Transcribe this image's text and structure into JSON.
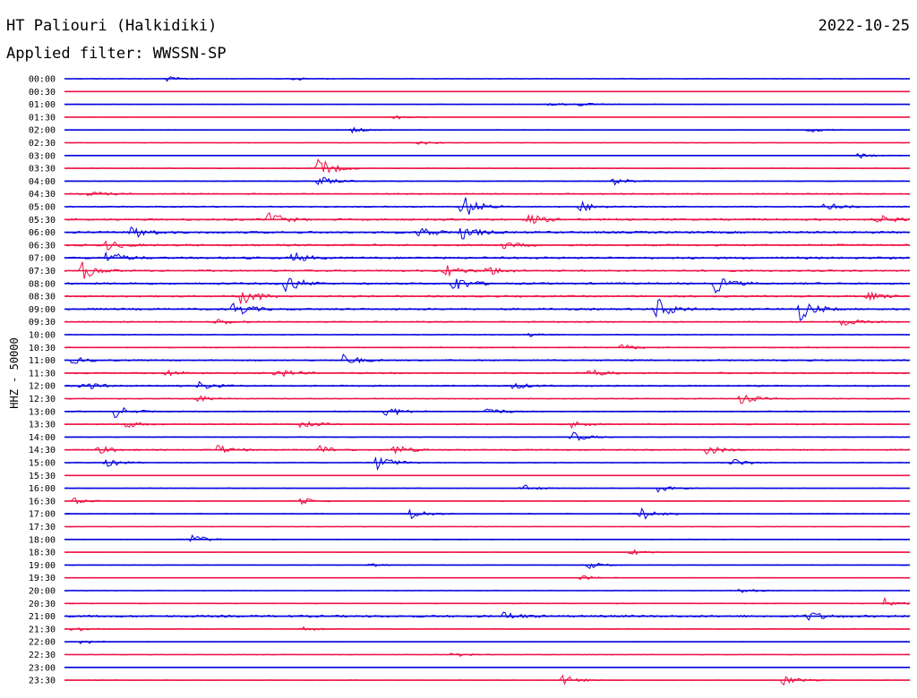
{
  "header": {
    "station": "HT Paliouri (Halkidiki)",
    "date": "2022-10-25",
    "filter": "Applied filter: WWSSN-SP",
    "channel": "HHZ - 50000"
  },
  "colors": {
    "blue": "#0000dd",
    "red": "#ee1144"
  },
  "chart_data": {
    "type": "line",
    "title": "HT Paliouri (Halkidiki)",
    "ylabel": "HHZ - 50000",
    "rows": [
      {
        "time": "00:00",
        "color": "blue",
        "level": 0.15,
        "events": [
          [
            0.12,
            0.3
          ],
          [
            0.27,
            0.25
          ]
        ]
      },
      {
        "time": "00:30",
        "color": "red",
        "level": 0.12,
        "events": []
      },
      {
        "time": "01:00",
        "color": "blue",
        "level": 0.12,
        "events": [
          [
            0.57,
            0.3
          ],
          [
            0.61,
            0.2
          ]
        ]
      },
      {
        "time": "01:30",
        "color": "red",
        "level": 0.1,
        "events": [
          [
            0.39,
            0.25
          ]
        ]
      },
      {
        "time": "02:00",
        "color": "blue",
        "level": 0.15,
        "events": [
          [
            0.34,
            0.3
          ],
          [
            0.88,
            0.3
          ]
        ]
      },
      {
        "time": "02:30",
        "color": "red",
        "level": 0.12,
        "events": [
          [
            0.42,
            0.25
          ]
        ]
      },
      {
        "time": "03:00",
        "color": "blue",
        "level": 0.12,
        "events": [
          [
            0.94,
            0.35
          ]
        ]
      },
      {
        "time": "03:30",
        "color": "red",
        "level": 0.2,
        "events": [
          [
            0.3,
            1.3
          ]
        ]
      },
      {
        "time": "04:00",
        "color": "blue",
        "level": 0.2,
        "events": [
          [
            0.3,
            0.6
          ],
          [
            0.65,
            0.4
          ]
        ]
      },
      {
        "time": "04:30",
        "color": "red",
        "level": 0.3,
        "events": [
          [
            0.03,
            0.35
          ]
        ]
      },
      {
        "time": "05:00",
        "color": "blue",
        "level": 0.3,
        "events": [
          [
            0.47,
            1.6
          ],
          [
            0.61,
            0.6
          ],
          [
            0.9,
            0.5
          ]
        ]
      },
      {
        "time": "05:30",
        "color": "red",
        "level": 0.45,
        "events": [
          [
            0.24,
            1.0
          ],
          [
            0.55,
            0.6
          ],
          [
            0.96,
            0.6
          ]
        ]
      },
      {
        "time": "06:00",
        "color": "blue",
        "level": 0.5,
        "events": [
          [
            0.08,
            0.8
          ],
          [
            0.42,
            0.8
          ],
          [
            0.47,
            0.9
          ]
        ]
      },
      {
        "time": "06:30",
        "color": "red",
        "level": 0.45,
        "events": [
          [
            0.05,
            0.6
          ],
          [
            0.52,
            0.4
          ]
        ]
      },
      {
        "time": "07:00",
        "color": "blue",
        "level": 0.5,
        "events": [
          [
            0.05,
            0.8
          ],
          [
            0.27,
            0.6
          ]
        ]
      },
      {
        "time": "07:30",
        "color": "red",
        "level": 0.4,
        "events": [
          [
            0.02,
            1.1
          ],
          [
            0.45,
            0.8
          ],
          [
            0.5,
            0.6
          ]
        ]
      },
      {
        "time": "08:00",
        "color": "blue",
        "level": 0.45,
        "events": [
          [
            0.26,
            1.3
          ],
          [
            0.46,
            1.0
          ],
          [
            0.77,
            1.0
          ]
        ]
      },
      {
        "time": "08:30",
        "color": "red",
        "level": 0.4,
        "events": [
          [
            0.21,
            1.2
          ],
          [
            0.95,
            0.5
          ]
        ]
      },
      {
        "time": "09:00",
        "color": "blue",
        "level": 0.45,
        "events": [
          [
            0.2,
            1.0
          ],
          [
            0.7,
            1.4
          ],
          [
            0.87,
            1.3
          ]
        ]
      },
      {
        "time": "09:30",
        "color": "red",
        "level": 0.3,
        "events": [
          [
            0.18,
            0.4
          ],
          [
            0.92,
            0.5
          ]
        ]
      },
      {
        "time": "10:00",
        "color": "blue",
        "level": 0.2,
        "events": [
          [
            0.55,
            0.3
          ]
        ]
      },
      {
        "time": "10:30",
        "color": "red",
        "level": 0.25,
        "events": [
          [
            0.66,
            0.35
          ]
        ]
      },
      {
        "time": "11:00",
        "color": "blue",
        "level": 0.35,
        "events": [
          [
            0.33,
            0.7
          ],
          [
            0.01,
            0.4
          ]
        ]
      },
      {
        "time": "11:30",
        "color": "red",
        "level": 0.35,
        "events": [
          [
            0.12,
            0.4
          ],
          [
            0.25,
            0.6
          ],
          [
            0.62,
            0.5
          ]
        ]
      },
      {
        "time": "12:00",
        "color": "blue",
        "level": 0.35,
        "events": [
          [
            0.02,
            0.6
          ],
          [
            0.16,
            0.5
          ],
          [
            0.53,
            0.4
          ]
        ]
      },
      {
        "time": "12:30",
        "color": "red",
        "level": 0.25,
        "events": [
          [
            0.15,
            0.6
          ],
          [
            0.8,
            0.6
          ]
        ]
      },
      {
        "time": "13:00",
        "color": "blue",
        "level": 0.25,
        "events": [
          [
            0.06,
            0.7
          ],
          [
            0.38,
            0.7
          ],
          [
            0.5,
            0.5
          ]
        ]
      },
      {
        "time": "13:30",
        "color": "red",
        "level": 0.25,
        "events": [
          [
            0.07,
            0.5
          ],
          [
            0.28,
            0.6
          ],
          [
            0.6,
            0.4
          ]
        ]
      },
      {
        "time": "14:00",
        "color": "blue",
        "level": 0.2,
        "events": [
          [
            0.6,
            0.6
          ]
        ]
      },
      {
        "time": "14:30",
        "color": "red",
        "level": 0.3,
        "events": [
          [
            0.04,
            0.5
          ],
          [
            0.18,
            0.6
          ],
          [
            0.3,
            0.6
          ],
          [
            0.39,
            0.6
          ],
          [
            0.76,
            0.6
          ]
        ]
      },
      {
        "time": "15:00",
        "color": "blue",
        "level": 0.2,
        "events": [
          [
            0.05,
            0.5
          ],
          [
            0.37,
            1.0
          ],
          [
            0.79,
            0.5
          ]
        ]
      },
      {
        "time": "15:30",
        "color": "red",
        "level": 0.1,
        "events": []
      },
      {
        "time": "16:00",
        "color": "blue",
        "level": 0.15,
        "events": [
          [
            0.54,
            0.5
          ],
          [
            0.7,
            0.5
          ]
        ]
      },
      {
        "time": "16:30",
        "color": "red",
        "level": 0.15,
        "events": [
          [
            0.01,
            0.4
          ],
          [
            0.28,
            0.4
          ]
        ]
      },
      {
        "time": "17:00",
        "color": "blue",
        "level": 0.2,
        "events": [
          [
            0.41,
            0.7
          ],
          [
            0.68,
            0.9
          ]
        ]
      },
      {
        "time": "17:30",
        "color": "red",
        "level": 0.1,
        "events": []
      },
      {
        "time": "18:00",
        "color": "blue",
        "level": 0.2,
        "events": [
          [
            0.15,
            0.6
          ]
        ]
      },
      {
        "time": "18:30",
        "color": "red",
        "level": 0.1,
        "events": [
          [
            0.67,
            0.4
          ]
        ]
      },
      {
        "time": "19:00",
        "color": "blue",
        "level": 0.12,
        "events": [
          [
            0.36,
            0.3
          ],
          [
            0.62,
            0.4
          ]
        ]
      },
      {
        "time": "19:30",
        "color": "red",
        "level": 0.12,
        "events": [
          [
            0.61,
            0.3
          ]
        ]
      },
      {
        "time": "20:00",
        "color": "blue",
        "level": 0.12,
        "events": [
          [
            0.8,
            0.3
          ]
        ]
      },
      {
        "time": "20:30",
        "color": "red",
        "level": 0.2,
        "events": [
          [
            0.97,
            0.6
          ]
        ]
      },
      {
        "time": "21:00",
        "color": "blue",
        "level": 0.5,
        "events": [
          [
            0.52,
            0.5
          ],
          [
            0.88,
            0.6
          ]
        ]
      },
      {
        "time": "21:30",
        "color": "red",
        "level": 0.2,
        "events": [
          [
            0.01,
            0.4
          ],
          [
            0.28,
            0.3
          ]
        ]
      },
      {
        "time": "22:00",
        "color": "blue",
        "level": 0.15,
        "events": [
          [
            0.02,
            0.3
          ]
        ]
      },
      {
        "time": "22:30",
        "color": "red",
        "level": 0.15,
        "events": [
          [
            0.46,
            0.3
          ]
        ]
      },
      {
        "time": "23:00",
        "color": "blue",
        "level": 0.1,
        "events": []
      },
      {
        "time": "23:30",
        "color": "red",
        "level": 0.15,
        "events": [
          [
            0.59,
            0.6
          ],
          [
            0.85,
            0.6
          ]
        ]
      }
    ]
  }
}
